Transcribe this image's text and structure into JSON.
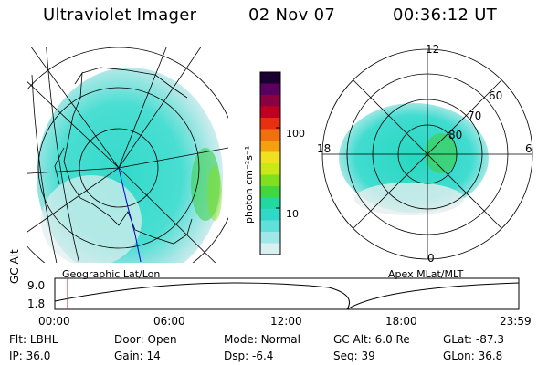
{
  "header": {
    "title": "Ultraviolet Imager",
    "date": "02 Nov 07",
    "time": "00:36:12 UT"
  },
  "colorbar": {
    "unit_label": "photon cm⁻²s⁻¹",
    "ticks": [
      "100",
      "10"
    ],
    "scale": "log",
    "colors": [
      "#1a0030",
      "#5a0060",
      "#8a0040",
      "#c00020",
      "#e83010",
      "#f07010",
      "#f4a010",
      "#f0e020",
      "#c8e818",
      "#80e020",
      "#40d840",
      "#20d8a0",
      "#30d8c8",
      "#60e0d8",
      "#a0e8e8",
      "#d8f0f0"
    ]
  },
  "geo_panel": {
    "label": "Geographic Lat/Lon"
  },
  "polar_panel": {
    "label": "Apex MLat/MLT",
    "mlt_labels": {
      "top": "12",
      "left": "18",
      "right": "6",
      "bottom": "0"
    },
    "lat_labels": [
      "60",
      "70",
      "80"
    ]
  },
  "altitude_plot": {
    "ylabel": "GC Alt",
    "yticks": [
      "9.0",
      "1.8"
    ],
    "xticks": [
      "00:00",
      "06:00",
      "12:00",
      "18:00",
      "23:59"
    ],
    "marker_color": "#d02020"
  },
  "footer": {
    "row1": [
      {
        "label": "Flt:",
        "value": "LBHL"
      },
      {
        "label": "Door:",
        "value": "Open"
      },
      {
        "label": "Mode:",
        "value": "Normal"
      },
      {
        "label": "GC Alt:",
        "value": "6.0 Re"
      },
      {
        "label": "GLat:",
        "value": "-87.3"
      }
    ],
    "row2": [
      {
        "label": "IP:",
        "value": "36.0"
      },
      {
        "label": "Gain:",
        "value": "14"
      },
      {
        "label": "Dsp:",
        "value": "-6.4"
      },
      {
        "label": "Seq:",
        "value": "39"
      },
      {
        "label": "GLon:",
        "value": "36.8"
      }
    ]
  }
}
